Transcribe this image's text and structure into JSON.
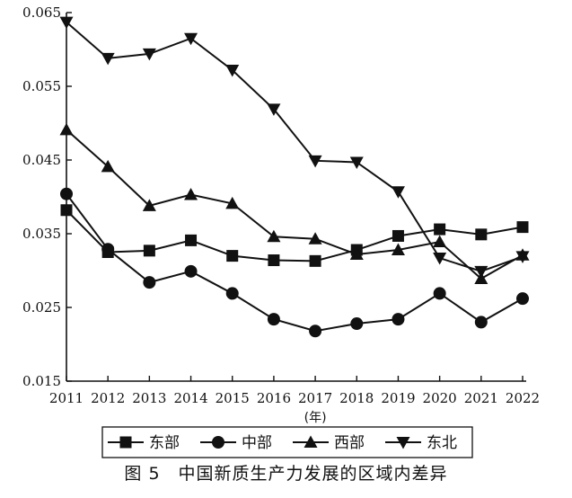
{
  "figure": {
    "caption": "图 5　中国新质生产力发展的区域内差异"
  },
  "chart_data": {
    "type": "line",
    "title": "",
    "xlabel": "(年)",
    "ylabel": "",
    "x": [
      2011,
      2012,
      2013,
      2014,
      2015,
      2016,
      2017,
      2018,
      2019,
      2020,
      2021,
      2022
    ],
    "x_tick_labels": [
      "2011",
      "2012",
      "2013",
      "2014",
      "2015",
      "2016",
      "2017",
      "2018",
      "2019",
      "2020",
      "2021",
      "2022"
    ],
    "ylim": [
      0.015,
      0.065
    ],
    "y_ticks": [
      0.015,
      0.025,
      0.035,
      0.045,
      0.055,
      0.065
    ],
    "y_tick_labels": [
      "0.015",
      "0.025",
      "0.035",
      "0.045",
      "0.055",
      "0.065"
    ],
    "grid": false,
    "legend_position": "bottom",
    "series": [
      {
        "name": "东部",
        "marker": "square",
        "values": [
          0.0382,
          0.0325,
          0.0327,
          0.0341,
          0.032,
          0.0314,
          0.0313,
          0.0328,
          0.0347,
          0.0356,
          0.0349,
          0.0359
        ]
      },
      {
        "name": "中部",
        "marker": "circle",
        "values": [
          0.0404,
          0.0329,
          0.0284,
          0.0299,
          0.0269,
          0.0234,
          0.0218,
          0.0228,
          0.0234,
          0.0269,
          0.023,
          0.0262
        ]
      },
      {
        "name": "西部",
        "marker": "triangle-up",
        "values": [
          0.0491,
          0.0441,
          0.0388,
          0.0403,
          0.0391,
          0.0346,
          0.0343,
          0.0322,
          0.0328,
          0.0339,
          0.0289,
          0.0321
        ]
      },
      {
        "name": "东北",
        "marker": "triangle-down",
        "values": [
          0.0637,
          0.0588,
          0.0594,
          0.0615,
          0.0572,
          0.0519,
          0.0449,
          0.0447,
          0.0407,
          0.0317,
          0.0299,
          0.0319
        ]
      }
    ]
  }
}
